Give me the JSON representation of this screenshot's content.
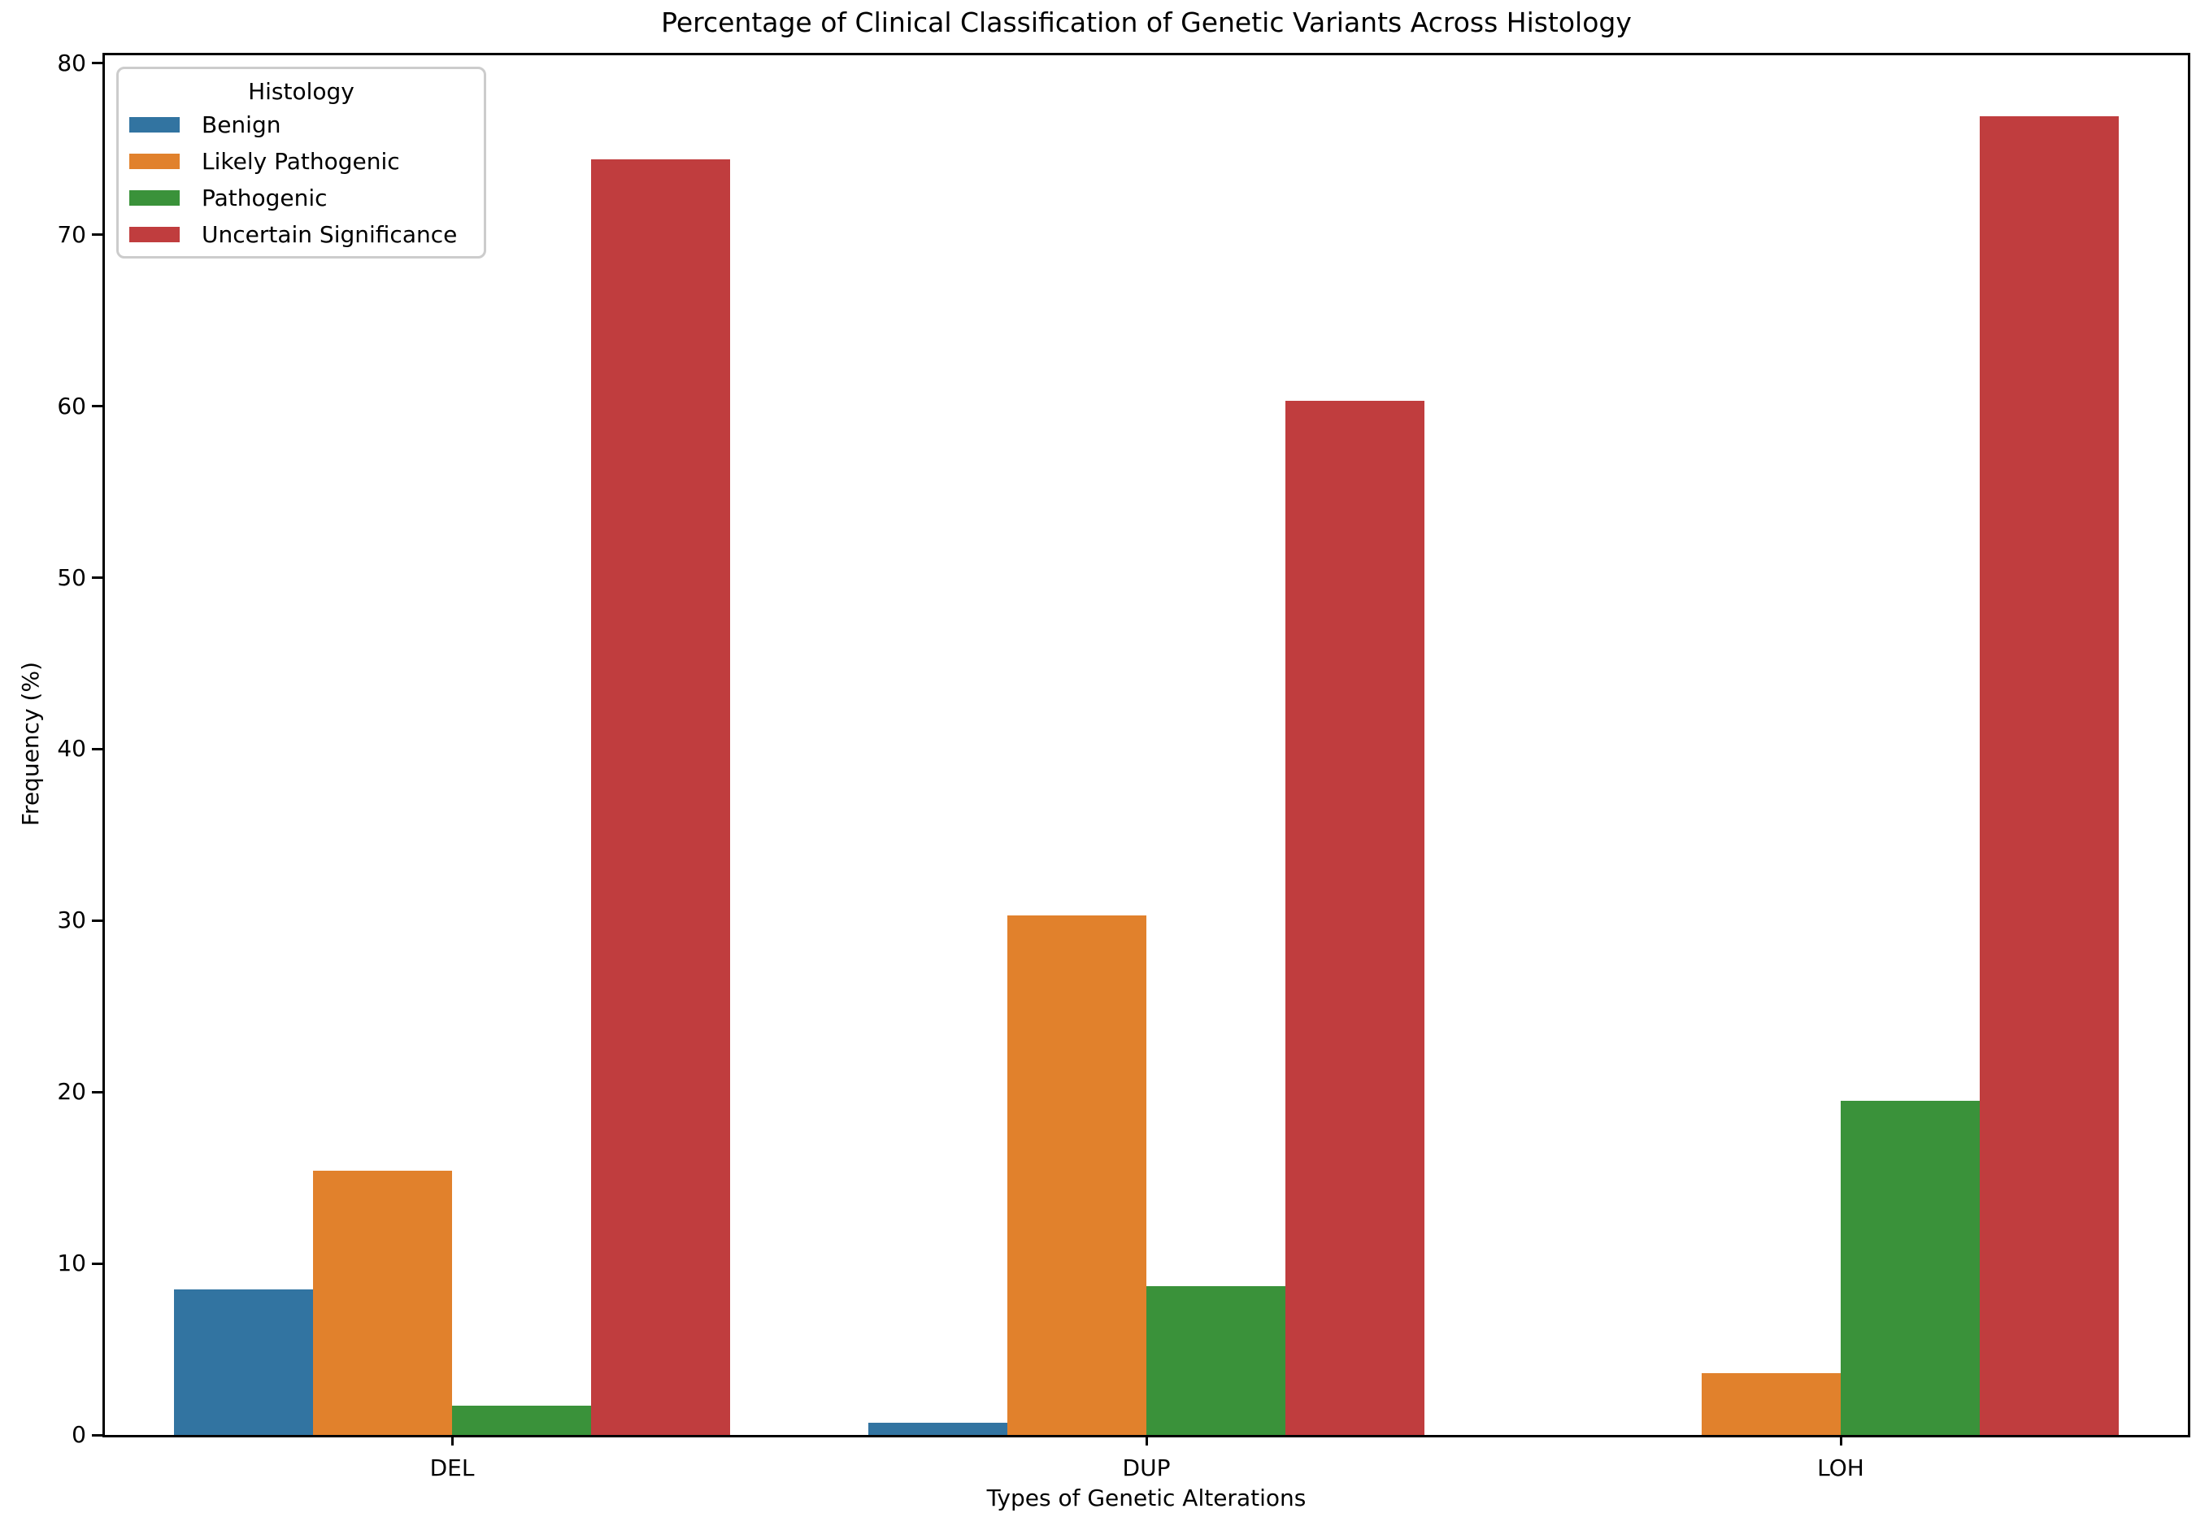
{
  "chart_data": {
    "type": "bar",
    "title": "Percentage of Clinical Classification of Genetic Variants Across Histology",
    "xlabel": "Types of Genetic Alterations",
    "ylabel": "Frequency (%)",
    "legend_title": "Histology",
    "legend_position": "upper left",
    "grid": false,
    "categories": [
      "DEL",
      "DUP",
      "LOH"
    ],
    "series": [
      {
        "name": "Benign",
        "color": "#3274a1",
        "values": [
          8.5,
          0.7,
          0.0
        ]
      },
      {
        "name": "Likely Pathogenic",
        "color": "#e1812c",
        "values": [
          15.4,
          30.3,
          3.6
        ]
      },
      {
        "name": "Pathogenic",
        "color": "#3a923a",
        "values": [
          1.7,
          8.7,
          19.5
        ]
      },
      {
        "name": "Uncertain Significance",
        "color": "#c03d3e",
        "values": [
          74.4,
          60.3,
          76.9
        ]
      }
    ],
    "ylim": [
      0,
      80
    ],
    "yticks": [
      0,
      10,
      20,
      30,
      40,
      50,
      60,
      70,
      80
    ],
    "axis_color": "#000000",
    "background_color": "#ffffff"
  }
}
